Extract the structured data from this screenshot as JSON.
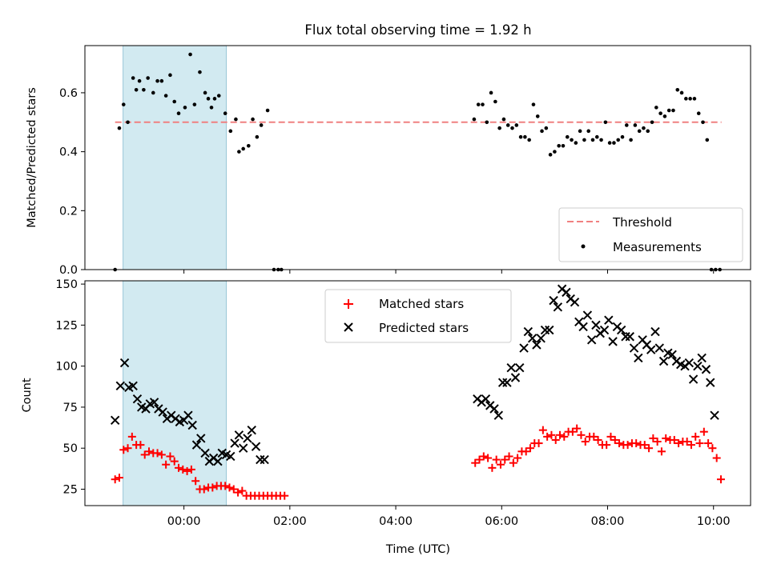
{
  "chart_data": [
    {
      "type": "scatter",
      "title": "Flux total observing time = 1.92 h",
      "xlabel": "",
      "ylabel": "Matched/Predicted stars",
      "ylim": [
        0,
        0.76
      ],
      "yticks": [
        0.0,
        0.2,
        0.4,
        0.6
      ],
      "ytick_labels": [
        "0.0",
        "0.2",
        "0.4",
        "0.6"
      ],
      "xlim": [
        -1.87,
        10.7
      ],
      "highlight_span_hours": [
        -1.15,
        0.8
      ],
      "legend_position": "lower-right",
      "legend": [
        "Threshold",
        "Measurements"
      ],
      "threshold": {
        "name": "Threshold",
        "value": 0.5,
        "x_range": [
          -1.3,
          10.15
        ],
        "color": "#f08080"
      },
      "measurements": {
        "name": "Measurements",
        "color": "#000000",
        "x": [
          -1.3,
          -1.22,
          -1.14,
          -1.06,
          -0.96,
          -0.9,
          -0.84,
          -0.76,
          -0.68,
          -0.58,
          -0.5,
          -0.42,
          -0.34,
          -0.26,
          -0.18,
          -0.1,
          0.02,
          0.12,
          0.2,
          0.3,
          0.4,
          0.46,
          0.52,
          0.58,
          0.66,
          0.78,
          0.88,
          0.98,
          1.04,
          1.12,
          1.22,
          1.3,
          1.38,
          1.46,
          1.58,
          1.7,
          1.78,
          1.84,
          5.48,
          5.56,
          5.64,
          5.72,
          5.8,
          5.88,
          5.96,
          6.04,
          6.12,
          6.2,
          6.28,
          6.36,
          6.44,
          6.52,
          6.6,
          6.68,
          6.76,
          6.84,
          6.92,
          7.0,
          7.08,
          7.16,
          7.24,
          7.32,
          7.4,
          7.48,
          7.56,
          7.64,
          7.72,
          7.8,
          7.88,
          7.96,
          8.04,
          8.12,
          8.2,
          8.28,
          8.36,
          8.44,
          8.52,
          8.6,
          8.68,
          8.76,
          8.84,
          8.92,
          9.0,
          9.08,
          9.16,
          9.24,
          9.32,
          9.4,
          9.48,
          9.56,
          9.64,
          9.72,
          9.8,
          9.88,
          9.96,
          10.04,
          10.12
        ],
        "y": [
          0.0,
          0.48,
          0.56,
          0.5,
          0.65,
          0.61,
          0.64,
          0.61,
          0.65,
          0.6,
          0.64,
          0.64,
          0.59,
          0.66,
          0.57,
          0.53,
          0.55,
          0.73,
          0.56,
          0.67,
          0.6,
          0.58,
          0.55,
          0.58,
          0.59,
          0.53,
          0.47,
          0.51,
          0.4,
          0.41,
          0.42,
          0.51,
          0.45,
          0.49,
          0.54,
          0.0,
          0.0,
          0.0,
          0.51,
          0.56,
          0.56,
          0.5,
          0.6,
          0.57,
          0.48,
          0.51,
          0.49,
          0.48,
          0.49,
          0.45,
          0.45,
          0.44,
          0.56,
          0.52,
          0.47,
          0.48,
          0.39,
          0.4,
          0.42,
          0.42,
          0.45,
          0.44,
          0.43,
          0.47,
          0.44,
          0.47,
          0.44,
          0.45,
          0.44,
          0.5,
          0.43,
          0.43,
          0.44,
          0.45,
          0.49,
          0.44,
          0.49,
          0.47,
          0.48,
          0.47,
          0.5,
          0.55,
          0.53,
          0.52,
          0.54,
          0.54,
          0.61,
          0.6,
          0.58,
          0.58,
          0.58,
          0.53,
          0.5,
          0.44,
          0.0,
          0.0,
          0.0
        ]
      }
    },
    {
      "type": "scatter",
      "title": "",
      "xlabel": "Time (UTC)",
      "ylabel": "Count",
      "ylim": [
        15,
        152
      ],
      "yticks": [
        25,
        50,
        75,
        100,
        125,
        150
      ],
      "ytick_labels": [
        "25",
        "50",
        "75",
        "100",
        "125",
        "150"
      ],
      "xlim": [
        -1.87,
        10.7
      ],
      "xticks": [
        0,
        2,
        4,
        6,
        8,
        10
      ],
      "xtick_labels": [
        "00:00",
        "02:00",
        "04:00",
        "06:00",
        "08:00",
        "10:00"
      ],
      "highlight_span_hours": [
        -1.15,
        0.8
      ],
      "legend_position": "upper-center",
      "legend": [
        "Matched stars",
        "Predicted stars"
      ],
      "series": [
        {
          "name": "Matched stars",
          "marker": "plus",
          "color": "#ff0000",
          "x": [
            -1.3,
            -1.22,
            -1.14,
            -1.06,
            -0.98,
            -0.9,
            -0.82,
            -0.74,
            -0.66,
            -0.58,
            -0.5,
            -0.42,
            -0.34,
            -0.26,
            -0.18,
            -0.1,
            -0.02,
            0.06,
            0.14,
            0.22,
            0.3,
            0.38,
            0.46,
            0.54,
            0.62,
            0.7,
            0.78,
            0.86,
            0.94,
            1.02,
            1.1,
            1.18,
            1.26,
            1.34,
            1.42,
            1.5,
            1.58,
            1.66,
            1.74,
            1.82,
            1.9,
            5.5,
            5.58,
            5.66,
            5.74,
            5.82,
            5.9,
            5.98,
            6.06,
            6.14,
            6.22,
            6.3,
            6.38,
            6.46,
            6.54,
            6.62,
            6.7,
            6.78,
            6.86,
            6.94,
            7.02,
            7.1,
            7.18,
            7.26,
            7.34,
            7.42,
            7.5,
            7.58,
            7.66,
            7.74,
            7.82,
            7.9,
            7.98,
            8.06,
            8.14,
            8.22,
            8.3,
            8.38,
            8.46,
            8.54,
            8.62,
            8.7,
            8.78,
            8.86,
            8.94,
            9.02,
            9.1,
            9.18,
            9.26,
            9.34,
            9.42,
            9.5,
            9.58,
            9.66,
            9.74,
            9.82,
            9.9,
            9.98,
            10.06,
            10.14
          ],
          "y": [
            31,
            32,
            49,
            50,
            57,
            52,
            52,
            46,
            48,
            47,
            47,
            46,
            40,
            45,
            42,
            38,
            37,
            36,
            37,
            30,
            25,
            25,
            26,
            26,
            27,
            27,
            27,
            26,
            25,
            23,
            24,
            21,
            21,
            21,
            21,
            21,
            21,
            21,
            21,
            21,
            21,
            41,
            43,
            45,
            44,
            38,
            43,
            40,
            43,
            45,
            41,
            44,
            48,
            48,
            50,
            53,
            53,
            61,
            57,
            58,
            55,
            58,
            57,
            60,
            60,
            62,
            58,
            54,
            57,
            57,
            55,
            52,
            52,
            57,
            55,
            53,
            52,
            52,
            53,
            53,
            52,
            52,
            50,
            56,
            54,
            48,
            56,
            55,
            55,
            53,
            54,
            54,
            52,
            57,
            53,
            60,
            53,
            50,
            44,
            31
          ]
        },
        {
          "name": "Predicted stars",
          "marker": "x",
          "color": "#000000",
          "x": [
            -1.3,
            -1.2,
            -1.12,
            -1.04,
            -0.96,
            -0.88,
            -0.8,
            -0.72,
            -0.64,
            -0.56,
            -0.48,
            -0.4,
            -0.32,
            -0.24,
            -0.16,
            -0.08,
            0.0,
            0.08,
            0.16,
            0.24,
            0.32,
            0.4,
            0.48,
            0.56,
            0.64,
            0.72,
            0.8,
            0.88,
            0.96,
            1.04,
            1.12,
            1.2,
            1.28,
            1.36,
            1.44,
            1.52,
            5.54,
            5.62,
            5.7,
            5.78,
            5.86,
            5.94,
            6.02,
            6.1,
            6.18,
            6.26,
            6.34,
            6.42,
            6.5,
            6.58,
            6.66,
            6.74,
            6.82,
            6.9,
            6.98,
            7.06,
            7.14,
            7.22,
            7.3,
            7.38,
            7.46,
            7.54,
            7.62,
            7.7,
            7.78,
            7.86,
            7.94,
            8.02,
            8.1,
            8.18,
            8.26,
            8.34,
            8.42,
            8.5,
            8.58,
            8.66,
            8.74,
            8.82,
            8.9,
            8.98,
            9.06,
            9.14,
            9.22,
            9.3,
            9.38,
            9.46,
            9.54,
            9.62,
            9.7,
            9.78,
            9.86,
            9.94,
            10.02
          ],
          "y": [
            67,
            88,
            102,
            87,
            88,
            80,
            75,
            74,
            77,
            78,
            74,
            72,
            68,
            70,
            68,
            66,
            67,
            70,
            64,
            52,
            56,
            47,
            42,
            44,
            42,
            47,
            46,
            45,
            53,
            58,
            50,
            56,
            61,
            51,
            43,
            43,
            80,
            78,
            80,
            76,
            74,
            70,
            90,
            90,
            99,
            93,
            99,
            111,
            121,
            117,
            113,
            117,
            122,
            122,
            140,
            136,
            147,
            145,
            141,
            139,
            127,
            124,
            131,
            116,
            125,
            120,
            122,
            128,
            115,
            124,
            122,
            118,
            118,
            111,
            105,
            116,
            113,
            110,
            121,
            111,
            103,
            108,
            107,
            103,
            101,
            100,
            102,
            92,
            100,
            105,
            98,
            90,
            70
          ]
        }
      ]
    }
  ]
}
